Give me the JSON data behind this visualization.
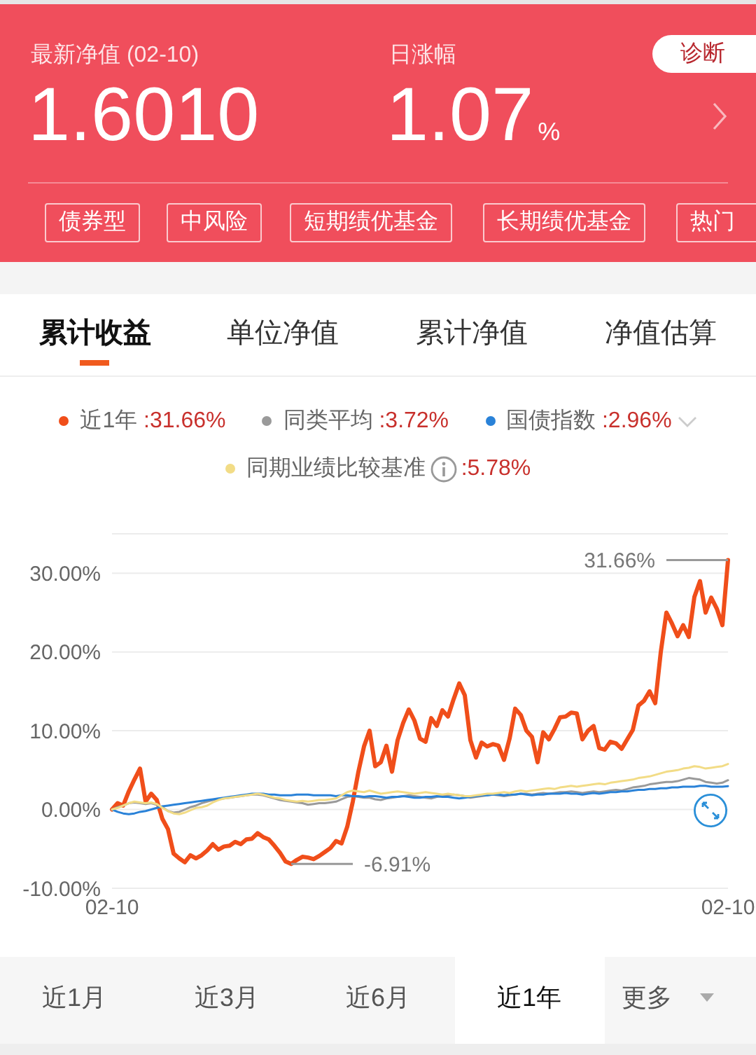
{
  "chart_data": {
    "type": "line",
    "categories": [
      "02-10",
      null,
      null,
      null,
      null,
      null,
      null,
      null,
      null,
      null,
      null,
      null,
      null,
      null,
      null,
      null,
      null,
      null,
      null,
      null,
      null,
      null,
      null,
      null,
      null,
      null,
      null,
      null,
      null,
      null,
      null,
      null,
      null,
      null,
      null,
      null,
      null,
      null,
      null,
      null,
      null,
      null,
      null,
      null,
      null,
      null,
      null,
      null,
      null,
      null,
      null,
      null,
      null,
      null,
      null,
      null,
      null,
      null,
      null,
      null,
      null,
      null,
      null,
      null,
      null,
      null,
      null,
      null,
      null,
      null,
      null,
      null,
      null,
      null,
      null,
      null,
      null,
      null,
      null,
      null,
      null,
      null,
      null,
      null,
      null,
      null,
      null,
      null,
      null,
      null,
      null,
      null,
      null,
      null,
      null,
      null,
      null,
      null,
      null,
      null,
      null,
      null,
      null,
      null,
      null,
      null,
      null,
      null,
      null,
      null,
      "02-10"
    ],
    "series": [
      {
        "name": "近1年 :31.66%",
        "color": "#f04e1a",
        "values": [
          0,
          0.8,
          0.5,
          2.3,
          3.8,
          5.2,
          1.0,
          2.0,
          1.2,
          -1.2,
          -2.5,
          -5.6,
          -6.2,
          -6.7,
          -5.8,
          -6.2,
          -5.8,
          -5.2,
          -4.4,
          -5.1,
          -4.7,
          -4.6,
          -4.1,
          -4.4,
          -3.8,
          -3.7,
          -3.0,
          -3.5,
          -3.8,
          -4.6,
          -5.5,
          -6.6,
          -6.91,
          -6.4,
          -6.0,
          -6.1,
          -6.3,
          -5.9,
          -5.4,
          -4.9,
          -4.0,
          -4.3,
          -2.2,
          1.0,
          4.8,
          8.0,
          10.0,
          5.5,
          6.0,
          8.1,
          4.8,
          8.8,
          11.0,
          12.7,
          11.3,
          9.0,
          8.6,
          11.6,
          10.6,
          12.6,
          11.8,
          14.0,
          16.0,
          14.5,
          8.8,
          6.6,
          8.5,
          8.0,
          8.3,
          8.1,
          6.3,
          9.0,
          12.8,
          12.0,
          10.0,
          9.2,
          6.0,
          9.8,
          8.9,
          10.2,
          11.7,
          11.8,
          12.3,
          12.2,
          8.9,
          10.0,
          10.6,
          7.8,
          7.6,
          8.6,
          8.4,
          7.7,
          8.9,
          10.1,
          13.2,
          13.8,
          15.0,
          13.5,
          20.0,
          25.0,
          23.6,
          22.0,
          23.4,
          21.9,
          27.0,
          29.0,
          25.0,
          26.9,
          25.5,
          23.4,
          31.66
        ]
      },
      {
        "name": "同类平均 :3.72%",
        "color": "#9a9a9a",
        "values": [
          0,
          0.3,
          0.5,
          0.8,
          0.9,
          0.8,
          0.7,
          0.8,
          0.6,
          0.3,
          -0.2,
          -0.4,
          -0.3,
          0,
          0.3,
          0.5,
          0.8,
          1.0,
          1.2,
          1.3,
          1.4,
          1.5,
          1.6,
          1.7,
          1.8,
          1.9,
          1.9,
          1.8,
          1.6,
          1.4,
          1.2,
          1.1,
          1.0,
          0.9,
          0.8,
          0.6,
          0.7,
          0.8,
          0.8,
          0.9,
          1.0,
          1.3,
          1.6,
          1.7,
          1.6,
          1.5,
          1.5,
          1.3,
          1.2,
          1.4,
          1.5,
          1.6,
          1.7,
          1.8,
          1.7,
          1.6,
          1.5,
          1.4,
          1.6,
          1.7,
          1.8,
          1.9,
          1.8,
          1.7,
          1.5,
          1.6,
          1.7,
          1.8,
          1.9,
          1.8,
          1.7,
          1.8,
          1.9,
          2.0,
          2.0,
          1.9,
          2.0,
          2.1,
          2.0,
          2.1,
          2.2,
          2.2,
          2.3,
          2.2,
          2.1,
          2.2,
          2.3,
          2.2,
          2.3,
          2.4,
          2.5,
          2.4,
          2.6,
          2.8,
          2.9,
          3.0,
          3.2,
          3.3,
          3.4,
          3.5,
          3.5,
          3.6,
          3.8,
          4.0,
          3.9,
          3.8,
          3.5,
          3.4,
          3.3,
          3.4,
          3.72
        ]
      },
      {
        "name": "国债指数 :2.96%",
        "color": "#2a82d8",
        "values": [
          0,
          -0.3,
          -0.5,
          -0.6,
          -0.5,
          -0.3,
          -0.2,
          0,
          0.2,
          0.4,
          0.5,
          0.6,
          0.7,
          0.8,
          0.9,
          1.0,
          1.1,
          1.2,
          1.3,
          1.4,
          1.5,
          1.6,
          1.7,
          1.8,
          1.9,
          2.0,
          2.0,
          2.0,
          1.9,
          1.9,
          1.8,
          1.8,
          1.8,
          1.9,
          1.9,
          1.9,
          1.8,
          1.8,
          1.8,
          1.8,
          1.7,
          1.8,
          1.8,
          1.7,
          1.7,
          1.6,
          1.7,
          1.7,
          1.6,
          1.5,
          1.6,
          1.6,
          1.7,
          1.6,
          1.5,
          1.5,
          1.6,
          1.6,
          1.7,
          1.6,
          1.6,
          1.5,
          1.4,
          1.5,
          1.6,
          1.7,
          1.8,
          1.8,
          1.9,
          1.9,
          1.8,
          1.9,
          1.9,
          2.0,
          1.9,
          1.8,
          1.9,
          1.9,
          2.0,
          2.0,
          2.0,
          2.1,
          2.0,
          2.0,
          1.9,
          2.0,
          2.1,
          2.0,
          2.1,
          2.2,
          2.2,
          2.3,
          2.3,
          2.4,
          2.5,
          2.5,
          2.6,
          2.6,
          2.7,
          2.7,
          2.8,
          2.8,
          2.9,
          2.9,
          2.9,
          3.0,
          3.0,
          2.9,
          2.9,
          2.9,
          2.96
        ]
      },
      {
        "name": "同期业绩比较基准 :5.78%",
        "color": "#f2dc86",
        "values": [
          0,
          0.2,
          0.5,
          0.8,
          1.0,
          0.9,
          0.8,
          0.9,
          0.7,
          0.2,
          -0.2,
          -0.5,
          -0.6,
          -0.4,
          -0.1,
          0.2,
          0.3,
          0.5,
          0.9,
          1.2,
          1.4,
          1.5,
          1.6,
          1.7,
          1.8,
          1.9,
          2.0,
          1.9,
          1.7,
          1.5,
          1.4,
          1.2,
          1.1,
          1.0,
          1.1,
          1.0,
          1.1,
          1.2,
          1.2,
          1.3,
          1.4,
          1.8,
          2.2,
          2.4,
          2.3,
          2.2,
          2.4,
          2.2,
          2.0,
          2.1,
          2.2,
          2.3,
          2.2,
          2.1,
          2.0,
          2.1,
          2.2,
          2.1,
          2.0,
          1.9,
          2.0,
          1.9,
          1.8,
          1.7,
          1.7,
          1.8,
          1.9,
          2.0,
          2.0,
          2.1,
          2.2,
          2.1,
          2.3,
          2.4,
          2.3,
          2.4,
          2.5,
          2.6,
          2.7,
          2.6,
          2.8,
          2.9,
          3.0,
          2.9,
          3.0,
          3.1,
          3.2,
          3.3,
          3.2,
          3.4,
          3.5,
          3.6,
          3.7,
          3.8,
          4.0,
          4.1,
          4.2,
          4.4,
          4.6,
          4.8,
          4.9,
          5.0,
          5.2,
          5.3,
          5.5,
          5.4,
          5.2,
          5.3,
          5.4,
          5.5,
          5.78
        ]
      }
    ],
    "ylim": [
      -10,
      35
    ],
    "yticks": [
      {
        "value": -10,
        "label": "-10.00%"
      },
      {
        "value": 0,
        "label": "0.00%"
      },
      {
        "value": 10,
        "label": "10.00%"
      },
      {
        "value": 20,
        "label": "20.00%"
      },
      {
        "value": 30,
        "label": "30.00%"
      }
    ],
    "grid": "y",
    "legend": "top",
    "annotations": [
      "最新净值 (02-10)",
      "1.6010",
      "日涨幅",
      "1.07%",
      "诊断",
      "债券型",
      "中风险",
      "短期绩优基金",
      "长期绩优基金",
      "热门",
      "累计收益",
      "单位净值",
      "累计净值",
      "净值估算",
      "近1月",
      "近3月",
      "近6月",
      "近1年",
      "更多",
      "-6.91%",
      "31.66%"
    ]
  }
}
